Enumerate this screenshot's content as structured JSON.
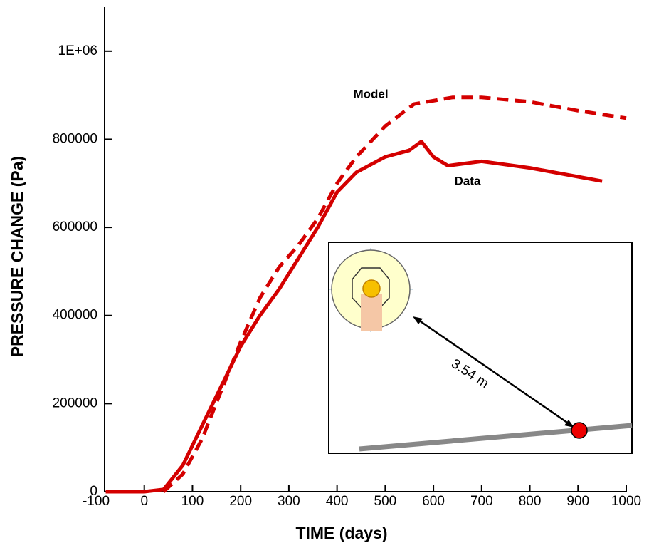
{
  "chart_data": {
    "type": "line",
    "xlabel": "TIME (days)",
    "ylabel": "PRESSURE CHANGE (Pa)",
    "xlim": [
      -100,
      1000
    ],
    "xticks": [
      -100,
      0,
      100,
      200,
      300,
      400,
      500,
      600,
      700,
      800,
      900,
      1000
    ],
    "ylim": [
      0,
      1100000
    ],
    "yticks": [
      0,
      200000,
      400000,
      600000,
      800000,
      {
        "value": 1000000,
        "label": "1E+06"
      }
    ],
    "series": [
      {
        "name": "Model",
        "color": "#d40000",
        "dashed": true,
        "x": [
          40,
          80,
          120,
          160,
          200,
          240,
          280,
          320,
          360,
          400,
          440,
          500,
          560,
          640,
          700,
          800,
          900,
          1000
        ],
        "values": [
          0,
          40000,
          120000,
          230000,
          340000,
          440000,
          510000,
          560000,
          620000,
          700000,
          760000,
          830000,
          880000,
          895000,
          895000,
          885000,
          865000,
          848000
        ]
      },
      {
        "name": "Data",
        "color": "#d40000",
        "dashed": false,
        "x": [
          -80,
          0,
          40,
          80,
          120,
          160,
          200,
          240,
          280,
          320,
          360,
          400,
          440,
          500,
          550,
          575,
          600,
          630,
          700,
          800,
          900,
          950
        ],
        "values": [
          0,
          0,
          5000,
          60000,
          150000,
          240000,
          330000,
          400000,
          460000,
          530000,
          600000,
          680000,
          725000,
          760000,
          775000,
          795000,
          760000,
          740000,
          750000,
          735000,
          715000,
          705000
        ]
      }
    ],
    "inset_label": "3.54 m"
  }
}
